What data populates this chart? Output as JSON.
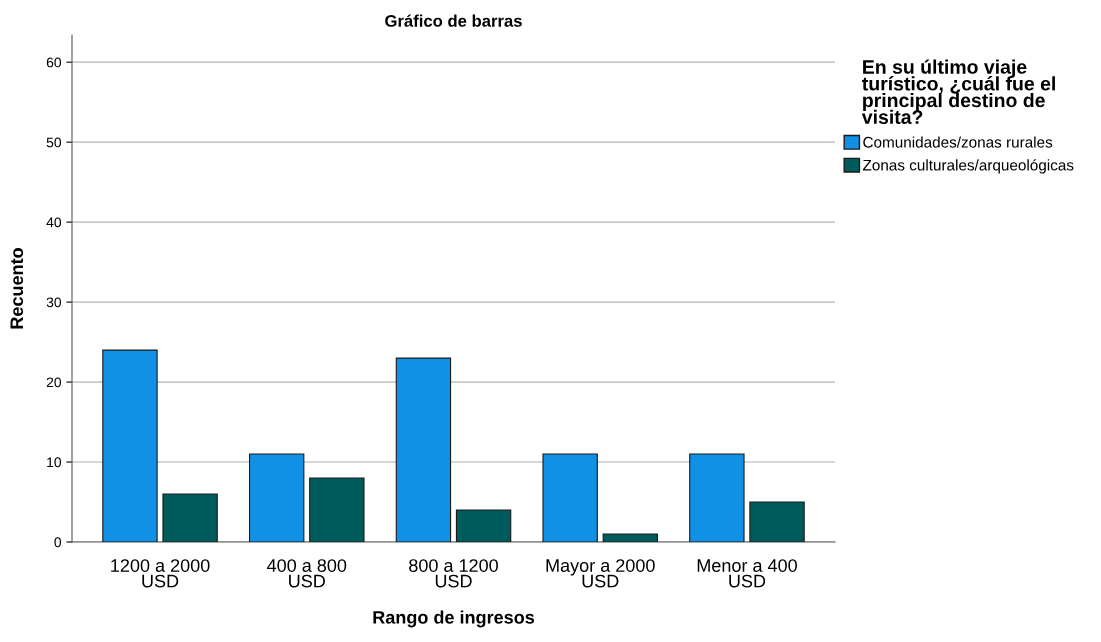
{
  "chart_data": {
    "type": "bar",
    "title": "Gráfico de barras",
    "xlabel": "Rango de ingresos",
    "ylabel": "Recuento",
    "legend_title": "En su último viaje\nturístico, ¿cuál fue el\nprincipal destino de\nvisita?",
    "categories": [
      "1200 a 2000\nUSD",
      "400 a 800\nUSD",
      "800 a 1200\nUSD",
      "Mayor a 2000\nUSD",
      "Menor a 400\nUSD"
    ],
    "series": [
      {
        "name": "Comunidades/zonas rurales",
        "color": "#1191e6",
        "values": [
          24,
          11,
          23,
          11,
          11
        ]
      },
      {
        "name": "Zonas culturales/arqueológicas",
        "color": "#005c5c",
        "values": [
          6,
          8,
          4,
          1,
          5
        ]
      }
    ],
    "ylim": [
      0,
      63.4
    ],
    "yticks": [
      0,
      10,
      20,
      30,
      40,
      50,
      60
    ],
    "grid": "y",
    "legend": "top right"
  }
}
